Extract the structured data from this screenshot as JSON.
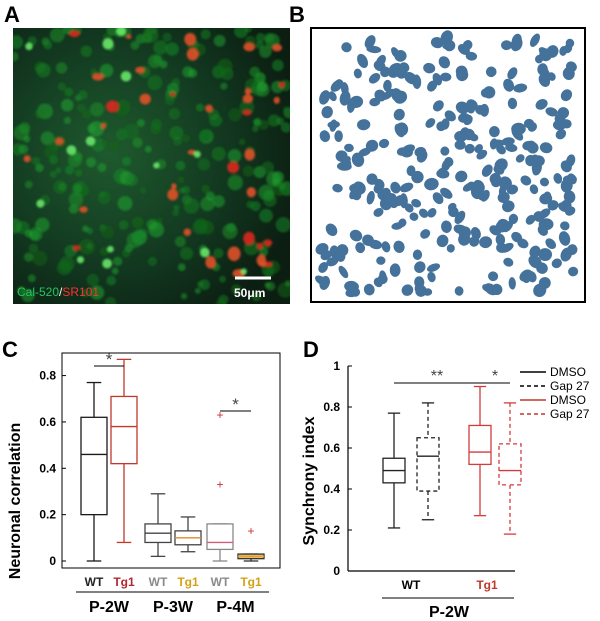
{
  "panel_labels": {
    "a": "A",
    "b": "B",
    "c": "C",
    "d": "D"
  },
  "panel_a": {
    "legend_green": "Cal-520",
    "legend_sep": "/",
    "legend_red": "SR101",
    "scale_label": "50μm"
  },
  "chart_data": [
    {
      "type": "box",
      "panel": "C",
      "ylabel": "Neuronal correlation",
      "ylim": [
        0,
        0.85
      ],
      "yticks": [
        "0",
        "0.2",
        "0.4",
        "0.6",
        "0.8"
      ],
      "groups": [
        {
          "label": "P-2W",
          "boxes": [
            {
              "label": "WT",
              "color": "#1a1a1a",
              "label_color": "#222222",
              "whisker_low": 0.0,
              "q1": 0.2,
              "median": 0.46,
              "q3": 0.62,
              "whisker_high": 0.77
            },
            {
              "label": "Tg1",
              "color": "#c0392b",
              "label_color": "#b0282f",
              "whisker_low": 0.08,
              "q1": 0.42,
              "median": 0.58,
              "q3": 0.71,
              "whisker_high": 0.87
            }
          ]
        },
        {
          "label": "P-3W",
          "boxes": [
            {
              "label": "WT",
              "color": "#444444",
              "label_color": "#8a8a8a",
              "whisker_low": 0.02,
              "q1": 0.08,
              "median": 0.12,
              "q3": 0.16,
              "whisker_high": 0.29
            },
            {
              "label": "Tg1",
              "color": "#444444",
              "median_color": "#e08a28",
              "label_color": "#d4a017",
              "whisker_low": 0.04,
              "q1": 0.07,
              "median": 0.1,
              "q3": 0.13,
              "whisker_high": 0.19
            }
          ]
        },
        {
          "label": "P-4M",
          "boxes": [
            {
              "label": "WT",
              "color": "#888888",
              "median_color": "#d65a7a",
              "label_color": "#8a8a8a",
              "whisker_low": 0.0,
              "q1": 0.05,
              "median": 0.08,
              "q3": 0.16,
              "whisker_high": 0.16,
              "outliers": [
                0.33,
                0.63
              ]
            },
            {
              "label": "Tg1",
              "color": "#333333",
              "median_color": "#f0a020",
              "fill": "#e3c07a",
              "label_color": "#d4a017",
              "whisker_low": 0.0,
              "q1": 0.01,
              "median": 0.02,
              "q3": 0.03,
              "whisker_high": 0.03,
              "outliers": [
                0.13
              ]
            }
          ]
        }
      ],
      "significance": [
        {
          "group": "P-2W",
          "marker": "*"
        },
        {
          "group": "P-4M",
          "marker": "*"
        }
      ]
    },
    {
      "type": "box",
      "panel": "D",
      "ylabel": "Synchrony index",
      "ylim": [
        0,
        1
      ],
      "yticks": [
        "0",
        "0.2",
        "0.4",
        "0.6",
        "0.8",
        "1"
      ],
      "boxes": [
        {
          "genotype": "WT",
          "treatment": "DMSO",
          "color": "#222222",
          "dashed": false,
          "whisker_low": 0.21,
          "q1": 0.43,
          "median": 0.49,
          "q3": 0.55,
          "whisker_high": 0.77
        },
        {
          "genotype": "WT",
          "treatment": "Gap 27",
          "color": "#222222",
          "dashed": true,
          "whisker_low": 0.25,
          "q1": 0.39,
          "median": 0.56,
          "q3": 0.65,
          "whisker_high": 0.82
        },
        {
          "genotype": "Tg1",
          "treatment": "DMSO",
          "color": "#d23c3c",
          "dashed": false,
          "whisker_low": 0.27,
          "q1": 0.52,
          "median": 0.58,
          "q3": 0.71,
          "whisker_high": 0.9
        },
        {
          "genotype": "Tg1",
          "treatment": "Gap 27",
          "color": "#d23c3c",
          "dashed": true,
          "whisker_low": 0.18,
          "q1": 0.42,
          "median": 0.49,
          "q3": 0.62,
          "whisker_high": 0.82
        }
      ],
      "categories": [
        {
          "label": "WT",
          "color": "#000000"
        },
        {
          "label": "Tg1",
          "color": "#c0392b"
        }
      ],
      "group_label": "P-2W",
      "significance": [
        {
          "between": "WT DMSO – Tg1 DMSO",
          "marker": "**"
        },
        {
          "between": "Tg1 DMSO – Tg1 Gap 27",
          "marker": "*"
        }
      ],
      "legend": [
        {
          "label": "DMSO",
          "color": "#000000",
          "dashed": false
        },
        {
          "label": "Gap 27",
          "color": "#000000",
          "dashed": true
        },
        {
          "label": "DMSO",
          "color": "#c0392b",
          "dashed": false
        },
        {
          "label": "Gap 27",
          "color": "#c0392b",
          "dashed": true
        }
      ]
    }
  ]
}
